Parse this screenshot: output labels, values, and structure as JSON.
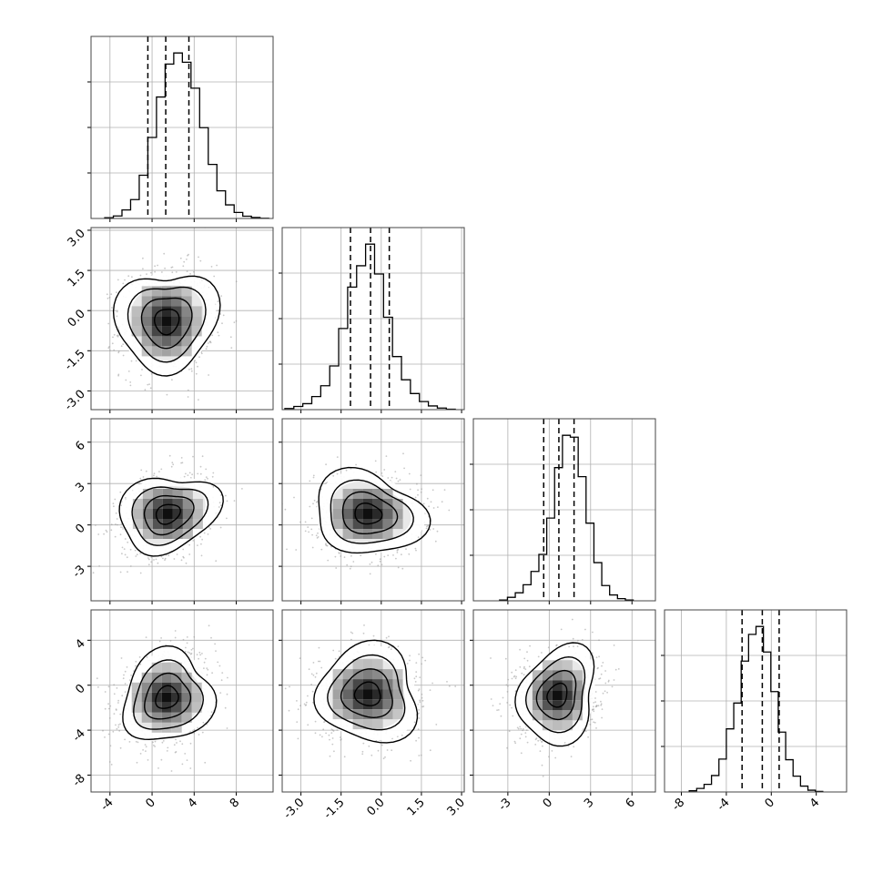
{
  "chart_data": {
    "type": "corner",
    "variables": [
      {
        "xlim": [
          -5.8,
          11.5
        ],
        "ticks": [
          "-4",
          "0",
          "4",
          "8"
        ],
        "tick_values": [
          -4,
          0,
          4,
          8
        ],
        "quantiles": [
          -0.4,
          1.3,
          3.5
        ],
        "hist_edges_start": -4.5,
        "hist_bin_width": 0.82,
        "hist_counts": [
          0.3,
          1.0,
          3.4,
          7.5,
          17.2,
          32.2,
          48.3,
          61.4,
          65.8,
          62.1,
          51.8,
          36.1,
          21.5,
          11.0,
          5.4,
          2.4,
          0.9,
          0.4,
          0.1
        ]
      },
      {
        "xlim": [
          -3.7,
          3.1
        ],
        "ticks": [
          "-3.0",
          "-1.5",
          "0.0",
          "1.5",
          "3.0"
        ],
        "tick_values": [
          -3.0,
          -1.5,
          0.0,
          1.5,
          3.0
        ],
        "quantiles": [
          -1.15,
          -0.4,
          0.3
        ],
        "hist_edges_start": -3.6,
        "hist_bin_width": 0.335,
        "hist_counts": [
          0.5,
          1.4,
          2.6,
          5.7,
          10.4,
          19.0,
          35.3,
          53.3,
          62.6,
          72.0,
          59.0,
          40.2,
          23.1,
          13.0,
          7.0,
          3.5,
          1.6,
          0.7,
          0.2
        ]
      },
      {
        "xlim": [
          -5.5,
          7.7
        ],
        "ticks": [
          "-3",
          "0",
          "3",
          "6"
        ],
        "tick_values": [
          -3,
          0,
          3,
          6
        ],
        "quantiles": [
          -0.4,
          0.7,
          1.8
        ],
        "hist_edges_start": -3.6,
        "hist_bin_width": 0.57,
        "hist_counts": [
          0.3,
          1.3,
          3.0,
          6.0,
          11.0,
          17.4,
          31.0,
          49.9,
          62.0,
          61.3,
          46.5,
          29.1,
          14.3,
          5.7,
          2.2,
          0.8,
          0.3
        ]
      },
      {
        "xlim": [
          -9.5,
          6.7
        ],
        "ticks": [
          "-8",
          "-4",
          "0",
          "4"
        ],
        "tick_values": [
          -8,
          -4,
          0,
          4
        ],
        "quantiles": [
          -2.6,
          -0.8,
          0.7
        ],
        "hist_edges_start": -7.3,
        "hist_bin_width": 0.66,
        "hist_counts": [
          0.4,
          1.2,
          2.6,
          5.6,
          11.2,
          21.5,
          30.3,
          44.6,
          53.7,
          56.4,
          47.7,
          34.2,
          20.4,
          11.0,
          5.4,
          2.0,
          0.6,
          0.2
        ]
      }
    ],
    "pairs": [
      {
        "x": 0,
        "y": 1,
        "center": [
          1.4,
          -0.4
        ],
        "sx": 2.2,
        "sy": 1.0,
        "rho": 0.05
      },
      {
        "x": 0,
        "y": 2,
        "center": [
          1.5,
          0.8
        ],
        "sx": 2.2,
        "sy": 1.5,
        "rho": 0.25
      },
      {
        "x": 1,
        "y": 2,
        "center": [
          -0.5,
          0.8
        ],
        "sx": 1.0,
        "sy": 1.5,
        "rho": 0.0
      },
      {
        "x": 0,
        "y": 3,
        "center": [
          1.4,
          -1.1
        ],
        "sx": 2.2,
        "sy": 2.0,
        "rho": 0.25
      },
      {
        "x": 1,
        "y": 3,
        "center": [
          -0.5,
          -0.8
        ],
        "sx": 1.0,
        "sy": 2.0,
        "rho": 0.0
      },
      {
        "x": 2,
        "y": 3,
        "center": [
          0.6,
          -0.9
        ],
        "sx": 1.5,
        "sy": 2.0,
        "rho": 0.15
      }
    ],
    "row_ticks": [
      null,
      {
        "labels": [
          "3.0",
          "1.5",
          "0.0",
          "-1.5",
          "-3.0"
        ],
        "values": [
          3.0,
          1.5,
          0.0,
          -1.5,
          -3.0
        ]
      },
      {
        "labels": [
          "6",
          "3",
          "0",
          "-3"
        ],
        "values": [
          6,
          3,
          0,
          -3
        ]
      },
      {
        "labels": [
          "4",
          "0",
          "-4",
          "-8"
        ],
        "values": [
          4,
          0,
          -4,
          -8
        ]
      }
    ],
    "contour_levels_sigma": [
      0.5,
      1.0,
      1.5,
      2.0
    ],
    "grid": true,
    "colors": {
      "line": "#000000",
      "grid": "#b0b0b0",
      "scatter": "#9a9a9a"
    }
  }
}
